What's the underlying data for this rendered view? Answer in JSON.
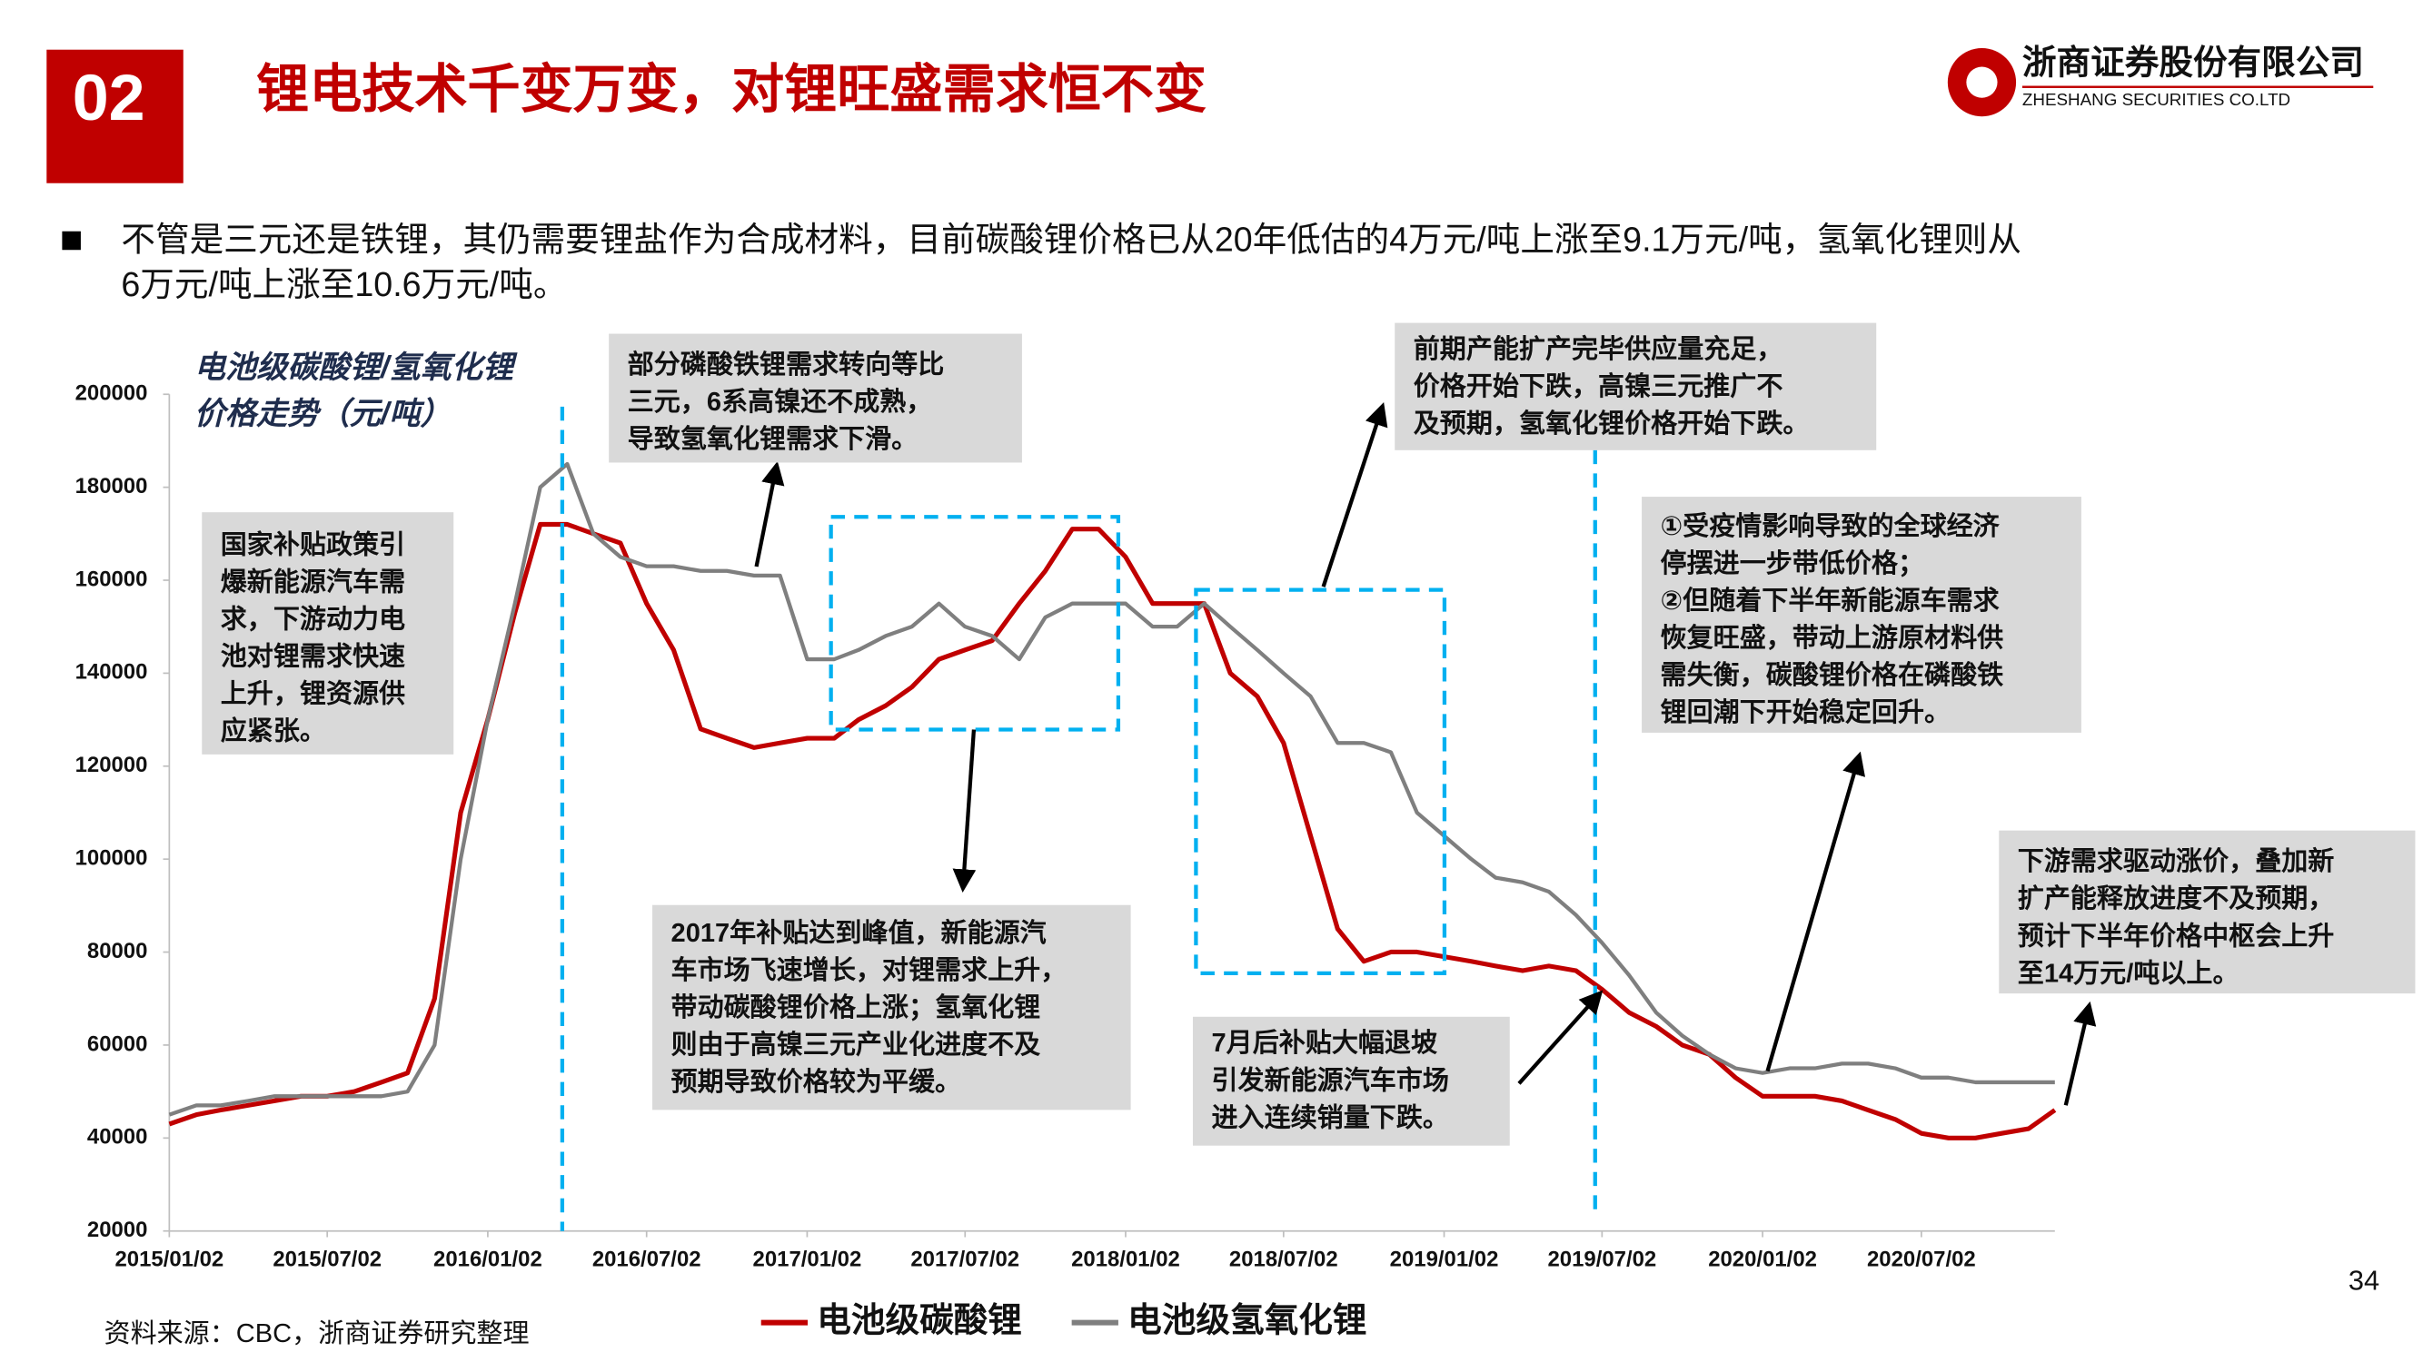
{
  "header": {
    "number": "02",
    "title": "锂电技术千变万变，对锂旺盛需求恒不变",
    "company": "浙商证券股份有限公司",
    "company_en": "ZHESHANG SECURITIES CO.LTD"
  },
  "bullet": {
    "lines": [
      "不管是三元还是铁锂，其仍需要锂盐作为合成材料，目前碳酸锂价格已从20年低估的4万元/吨上涨至9.1万元/吨，氢氧化锂则从",
      "6万元/吨上涨至10.6万元/吨。"
    ]
  },
  "chart_data": {
    "type": "line",
    "title_lines": [
      "电池级碳酸锂/氢氧化锂",
      "价格走势（元/吨）"
    ],
    "x": [
      "2015/01/02",
      "2015/02/02",
      "2015/03/02",
      "2015/04/02",
      "2015/05/02",
      "2015/06/02",
      "2015/07/02",
      "2015/08/02",
      "2015/09/02",
      "2015/10/02",
      "2015/11/02",
      "2015/12/02",
      "2016/01/02",
      "2016/02/02",
      "2016/03/02",
      "2016/04/02",
      "2016/05/02",
      "2016/06/02",
      "2016/07/02",
      "2016/08/02",
      "2016/09/02",
      "2016/10/02",
      "2016/11/02",
      "2016/12/02",
      "2017/01/02",
      "2017/02/02",
      "2017/03/02",
      "2017/04/02",
      "2017/05/02",
      "2017/06/02",
      "2017/07/02",
      "2017/08/02",
      "2017/09/02",
      "2017/10/02",
      "2017/11/02",
      "2017/12/02",
      "2018/01/02",
      "2018/02/02",
      "2018/03/02",
      "2018/04/02",
      "2018/05/02",
      "2018/06/02",
      "2018/07/02",
      "2018/08/02",
      "2018/09/02",
      "2018/10/02",
      "2018/11/02",
      "2018/12/02",
      "2019/01/02",
      "2019/02/02",
      "2019/03/02",
      "2019/04/02",
      "2019/05/02",
      "2019/06/02",
      "2019/07/02",
      "2019/08/02",
      "2019/09/02",
      "2019/10/02",
      "2019/11/02",
      "2019/12/02",
      "2020/01/02",
      "2020/02/02",
      "2020/03/02",
      "2020/04/02",
      "2020/05/02",
      "2020/06/02",
      "2020/07/02",
      "2020/08/02",
      "2020/09/02",
      "2020/10/02",
      "2020/11/02",
      "2020/12/02"
    ],
    "series": [
      {
        "name": "电池级碳酸锂",
        "color": "#c00000",
        "values": [
          43000,
          45000,
          46000,
          47000,
          48000,
          49000,
          49000,
          50000,
          52000,
          54000,
          70000,
          110000,
          130000,
          153000,
          172000,
          172000,
          170000,
          168000,
          155000,
          145000,
          128000,
          126000,
          124000,
          125000,
          126000,
          126000,
          130000,
          133000,
          137000,
          143000,
          145000,
          147000,
          155000,
          162000,
          171000,
          171000,
          165000,
          155000,
          155000,
          155000,
          140000,
          135000,
          125000,
          105000,
          85000,
          78000,
          80000,
          80000,
          79000,
          78000,
          77000,
          76000,
          77000,
          76000,
          72000,
          67000,
          64000,
          60000,
          58000,
          53000,
          49000,
          49000,
          49000,
          48000,
          46000,
          44000,
          41000,
          40000,
          40000,
          41000,
          42000,
          46000
        ]
      },
      {
        "name": "电池级氢氧化锂",
        "color": "#7f7f7f",
        "values": [
          45000,
          47000,
          47000,
          48000,
          49000,
          49000,
          49000,
          49000,
          49000,
          50000,
          60000,
          100000,
          130000,
          155000,
          180000,
          185000,
          170000,
          165000,
          163000,
          163000,
          162000,
          162000,
          161000,
          161000,
          143000,
          143000,
          145000,
          148000,
          150000,
          155000,
          150000,
          148000,
          143000,
          152000,
          155000,
          155000,
          155000,
          150000,
          150000,
          155000,
          150000,
          145000,
          140000,
          135000,
          125000,
          125000,
          123000,
          110000,
          105000,
          100000,
          96000,
          95000,
          93000,
          88000,
          82000,
          75000,
          67000,
          62000,
          58000,
          55000,
          54000,
          55000,
          55000,
          56000,
          56000,
          55000,
          53000,
          53000,
          52000,
          52000,
          52000,
          52000
        ]
      }
    ],
    "xlim": [
      "2015/01/02",
      "2020/12/02"
    ],
    "xticks": [
      "2015/01/02",
      "2015/07/02",
      "2016/01/02",
      "2016/07/02",
      "2017/01/02",
      "2017/07/02",
      "2018/01/02",
      "2018/07/02",
      "2019/01/02",
      "2019/07/02",
      "2020/01/02",
      "2020/07/02"
    ],
    "ylim": [
      20000,
      200000
    ],
    "yticks": [
      20000,
      40000,
      60000,
      80000,
      100000,
      120000,
      140000,
      160000,
      180000,
      200000
    ],
    "annotations": [
      {
        "lines": [
          "国家补贴政策引",
          "爆新能源汽车需",
          "求，下游动力电",
          "池对锂需求快速",
          "上升，锂资源供",
          "应紧张。"
        ]
      },
      {
        "lines": [
          "部分磷酸铁锂需求转向等比",
          "三元，6系高镍还不成熟，",
          "导致氢氧化锂需求下滑。"
        ]
      },
      {
        "lines": [
          "2017年补贴达到峰值，新能源汽",
          "车市场飞速增长，对锂需求上升，",
          "带动碳酸锂价格上涨；氢氧化锂",
          "则由于高镍三元产业化进度不及",
          "预期导致价格较为平缓。"
        ]
      },
      {
        "lines": [
          "7月后补贴大幅退坡",
          "引发新能源汽车市场",
          "进入连续销量下跌。"
        ]
      },
      {
        "lines": [
          "前期产能扩产完毕供应量充足，",
          "价格开始下跌，高镍三元推广不",
          "及预期，氢氧化锂价格开始下跌。"
        ]
      },
      {
        "lines": [
          "①受疫情影响导致的全球经济",
          "停摆进一步带低价格；",
          "②但随着下半年新能源车需求",
          "恢复旺盛，带动上游原材料供",
          "需失衡，碳酸锂价格在磷酸铁",
          "锂回潮下开始稳定回升。"
        ]
      },
      {
        "lines": [
          "下游需求驱动涨价，叠加新",
          "扩产能释放进度不及预期，",
          "预计下半年价格中枢会上升",
          "至14万元/吨以上。"
        ]
      }
    ]
  },
  "source": "资料来源：CBC，浙商证券研究整理",
  "page_number": "34"
}
